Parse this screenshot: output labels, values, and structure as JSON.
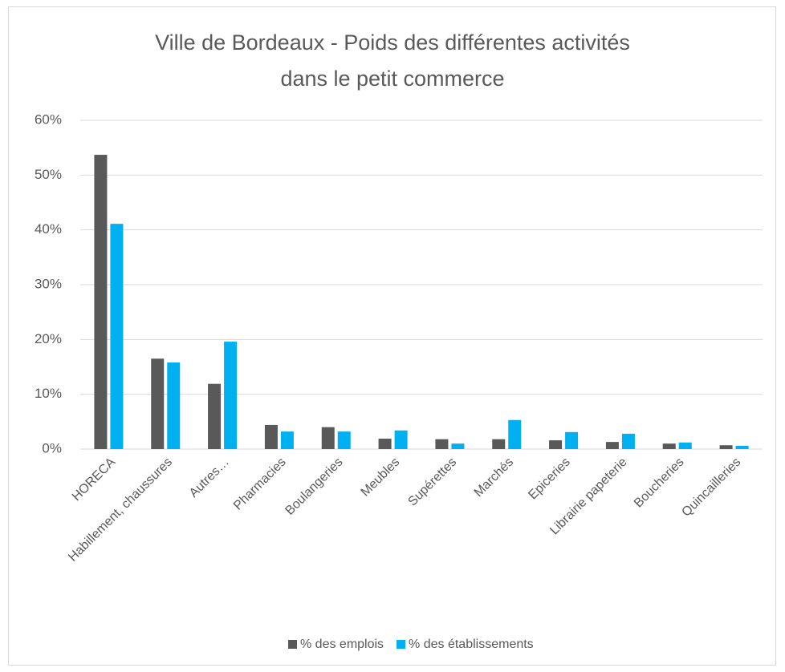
{
  "chart_data": {
    "type": "bar",
    "title": [
      "Ville de Bordeaux - Poids des différentes activités",
      "dans le petit commerce"
    ],
    "categories": [
      "HORECA",
      "Habillement, chaussures",
      "Autres…",
      "Pharmacies",
      "Boulangeries",
      "Meubles",
      "Supérettes",
      "Marchés",
      "Epiceries",
      "Librairie papeterie",
      "Boucheries",
      "Quincailleries"
    ],
    "series": [
      {
        "name": "% des emplois",
        "color": "#595959",
        "values": [
          53.7,
          16.5,
          11.9,
          4.4,
          4.0,
          1.9,
          1.8,
          1.8,
          1.6,
          1.3,
          1.0,
          0.7
        ]
      },
      {
        "name": "% des établissements",
        "color": "#00b0f0",
        "values": [
          41.1,
          15.8,
          19.6,
          3.2,
          3.2,
          3.4,
          1.0,
          5.3,
          3.1,
          2.8,
          1.2,
          0.6
        ]
      }
    ],
    "ylim": [
      0,
      60
    ],
    "yticks": [
      {
        "value": 0,
        "label": "0%"
      },
      {
        "value": 10,
        "label": "10%"
      },
      {
        "value": 20,
        "label": "20%"
      },
      {
        "value": 30,
        "label": "30%"
      },
      {
        "value": 40,
        "label": "40%"
      },
      {
        "value": 50,
        "label": "50%"
      },
      {
        "value": 60,
        "label": "60%"
      }
    ],
    "grid": true,
    "legend": "bottom"
  }
}
